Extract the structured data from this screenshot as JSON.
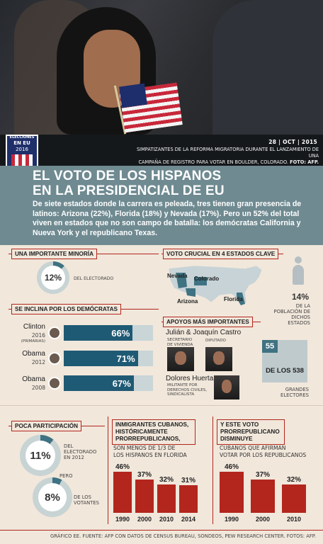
{
  "photo": {
    "date": "28 | OCT | 2015",
    "caption_line1": "SIMPATIZANTES DE LA REFORMA MIGRATORIA DURANTE EL LANZAMIENTO DE UNA",
    "caption_line2": "CAMPAÑA DE REGISTRO PARA VOTAR EN BOULDER, COLORADO.",
    "caption_credit": "FOTO: AFP."
  },
  "logo": {
    "line1": "ELECCIONES",
    "line2": "EN EU",
    "line3": "2016"
  },
  "header": {
    "title_line1": "EL VOTO DE LOS HISPANOS",
    "title_line2": "EN LA PRESIDENCIAL DE EU",
    "intro": "De siete estados donde la carrera es peleada, tres tienen gran presencia de latinos: Arizona (22%), Florida (18%) y Nevada (17%). Pero un 52% del total viven en estados que no son campo de batalla: los demócratas California y Nueva York y el republicano Texas."
  },
  "minority": {
    "title": "UNA IMPORTANTE MINORÍA",
    "value": "12%",
    "label": "DEL ELECTORADO",
    "percent": 12
  },
  "democrats": {
    "title": "SE INCLINA POR LOS DEMÓCRATAS",
    "rows": [
      {
        "name": "Clinton",
        "year": "2016",
        "note": "(PRIMARIAS)",
        "value": "66%",
        "percent": 66
      },
      {
        "name": "Obama",
        "year": "2012",
        "note": "",
        "value": "71%",
        "percent": 71
      },
      {
        "name": "Obama",
        "year": "2008",
        "note": "",
        "value": "67%",
        "percent": 67
      }
    ]
  },
  "key_states": {
    "title": "VOTO CRUCIAL EN 4 ESTADOS CLAVE",
    "states": [
      "Nevada",
      "Colorado",
      "Arizona",
      "Florida"
    ],
    "value": "14%",
    "label_line1": "DE LA",
    "label_line2": "POBLACIÓN DE",
    "label_line3": "DICHOS ESTADOS"
  },
  "support": {
    "title": "APOYOS MÁS IMPORTANTES",
    "castro": "Julián & Joaquín Castro",
    "castro_role1_line1": "SECRETARIO",
    "castro_role1_line2": "DE VIVIENDA",
    "castro_role2": "DIPUTADO",
    "huerta": "Dolores Huerta",
    "huerta_role_line1": "MILITANTE POR",
    "huerta_role_line2": "DERECHOS CIVILES,",
    "huerta_role_line3": "SINDICALISTA"
  },
  "electors": {
    "value": "55",
    "of": "DE LOS 538",
    "label_line1": "GRANDES",
    "label_line2": "ELECTORES"
  },
  "participation": {
    "title": "POCA PARTICIPACIÓN",
    "value1": "11%",
    "label1_line1": "DEL",
    "label1_line2": "ELECTORADO",
    "label1_line3": "EN 2012",
    "percent1": 11,
    "pero": "PERO",
    "value2": "8%",
    "label2_line1": "DE LOS",
    "label2_line2": "VOTANTES",
    "percent2": 8
  },
  "cubans": {
    "title_line1": "INMIGRANTES CUBANOS,",
    "title_line2": "HISTÓRICAMENTE",
    "title_line3": "PRORREPUBLICANOS,",
    "subtitle_line1": "SON MENOS DE 1/3 DE",
    "subtitle_line2": "LOS HISPANOS EN FLORIDA",
    "bars": [
      {
        "label": "46%",
        "year": "1990",
        "value": 46
      },
      {
        "label": "37%",
        "year": "2000",
        "value": 37
      },
      {
        "label": "32%",
        "year": "2010",
        "value": 32
      },
      {
        "label": "31%",
        "year": "2014",
        "value": 31
      }
    ]
  },
  "republicans": {
    "title_line1": "Y ESTE VOTO",
    "title_line2": "PRORREPUBLICANO",
    "title_line3": "DISMINUYE",
    "subtitle_line1": "CUBANOS QUE AFIRMAN",
    "subtitle_line2": "VOTAR POR LOS REPUBLICANOS",
    "bars": [
      {
        "label": "46%",
        "year": "1990",
        "value": 46
      },
      {
        "label": "37%",
        "year": "2000",
        "value": 37
      },
      {
        "label": "32%",
        "year": "2010",
        "value": 32
      }
    ]
  },
  "footer": {
    "text": "GRÁFICO EE. FUENTE: AFP CON DATOS DE CENSUS BUREAU, SONDEOS, PEW RESEARCH CENTER. FOTOS: AFP."
  },
  "colors": {
    "accent_red": "#b3261e",
    "bar_blue": "#1f5a74",
    "header_teal": "#6f8a91",
    "background": "#f1e7db"
  }
}
